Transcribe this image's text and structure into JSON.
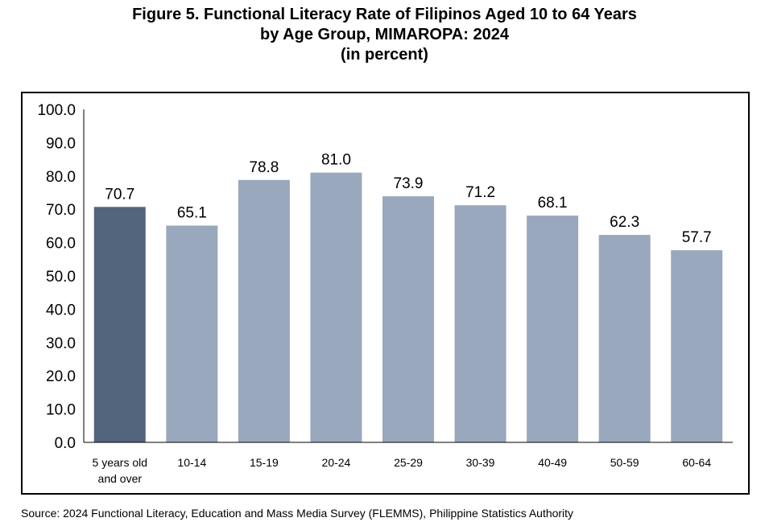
{
  "title_lines": [
    "Figure 5. Functional Literacy Rate of Filipinos Aged 10 to 64 Years",
    "by Age Group, MIMAROPA: 2024",
    "(in percent)"
  ],
  "source": "Source: 2024 Functional Literacy, Education and Mass Media Survey (FLEMMS), Philippine Statistics Authority",
  "colors": {
    "highlight_bar": "#53647d",
    "bar": "#99a8bc",
    "frame": "#000000"
  },
  "chart_data": {
    "type": "bar",
    "title": "Figure 5. Functional Literacy Rate of Filipinos Aged 10 to 64 Years by Age Group, MIMAROPA: 2024",
    "subtitle": "(in percent)",
    "categories": [
      [
        "5 years old",
        "and over"
      ],
      [
        "10-14"
      ],
      [
        "15-19"
      ],
      [
        "20-24"
      ],
      [
        "25-29"
      ],
      [
        "30-39"
      ],
      [
        "40-49"
      ],
      [
        "50-59"
      ],
      [
        "60-64"
      ]
    ],
    "values": [
      70.7,
      65.1,
      78.8,
      81.0,
      73.9,
      71.2,
      68.1,
      62.3,
      57.7
    ],
    "value_labels": [
      "70.7",
      "65.1",
      "78.8",
      "81.0",
      "73.9",
      "71.2",
      "68.1",
      "62.3",
      "57.7"
    ],
    "highlighted_index": 0,
    "ylim": [
      0,
      100
    ],
    "yticks": [
      "0.0",
      "10.0",
      "20.0",
      "30.0",
      "40.0",
      "50.0",
      "60.0",
      "70.0",
      "80.0",
      "90.0",
      "100.0"
    ],
    "grid": false,
    "legend": "none"
  }
}
